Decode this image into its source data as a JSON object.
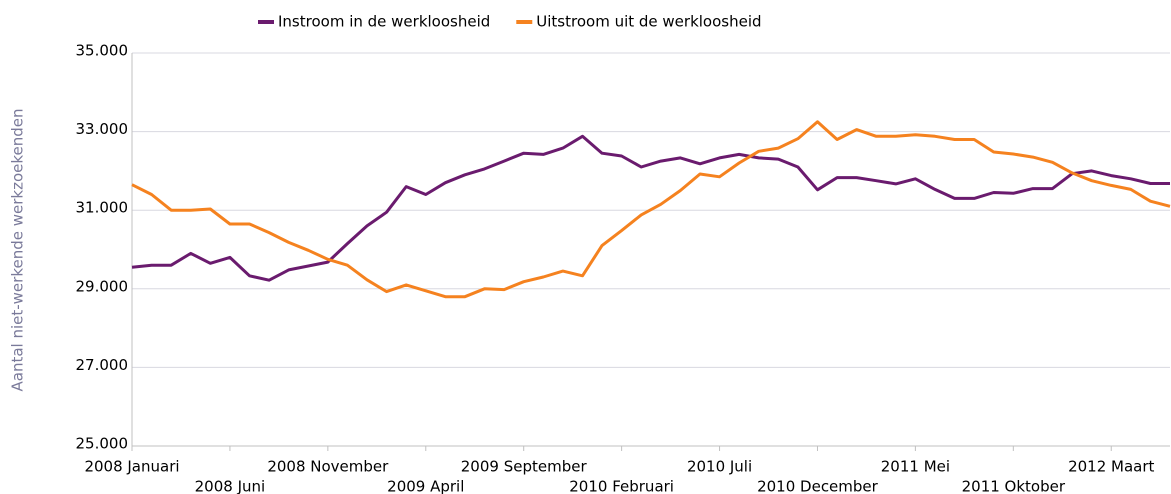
{
  "chart_data": {
    "type": "line",
    "ylabel": "Aantal niet-werkende werkzoekenden",
    "categories": [
      "2008 Januari",
      null,
      null,
      null,
      null,
      "2008 Juni",
      null,
      null,
      null,
      null,
      "2008 November",
      null,
      null,
      null,
      null,
      "2009 April",
      null,
      null,
      null,
      null,
      "2009 September",
      null,
      null,
      null,
      null,
      "2010 Februari",
      null,
      null,
      null,
      null,
      "2010 Juli",
      null,
      null,
      null,
      null,
      "2010 December",
      null,
      null,
      null,
      null,
      "2011 Mei",
      null,
      null,
      null,
      null,
      "2011 Oktober",
      null,
      null,
      null,
      null,
      "2012 Maart",
      null,
      null,
      null
    ],
    "series": [
      {
        "name": "Instroom in de werkloosheid",
        "color": "#6a1b6e",
        "values": [
          29550,
          29600,
          29600,
          29900,
          29650,
          29800,
          29330,
          29220,
          29480,
          29580,
          29680,
          30150,
          30600,
          30950,
          31600,
          31400,
          31700,
          31900,
          32050,
          32250,
          32450,
          32420,
          32580,
          32880,
          32450,
          32380,
          32100,
          32250,
          32330,
          32180,
          32330,
          32420,
          32330,
          32300,
          32100,
          31520,
          31830,
          31830,
          31750,
          31670,
          31800,
          31530,
          31300,
          31300,
          31450,
          31430,
          31550,
          31550,
          31930,
          32000,
          31880,
          31800,
          31680,
          31680
        ]
      },
      {
        "name": "Uitstroom uit de werkloosheid",
        "color": "#f5821f",
        "values": [
          31650,
          31400,
          31000,
          31000,
          31030,
          30650,
          30650,
          30430,
          30180,
          29980,
          29750,
          29600,
          29230,
          28930,
          29100,
          28950,
          28800,
          28800,
          29000,
          28980,
          29180,
          29300,
          29450,
          29330,
          30100,
          30480,
          30880,
          31150,
          31500,
          31920,
          31850,
          32200,
          32500,
          32580,
          32820,
          33250,
          32800,
          33050,
          32880,
          32880,
          32920,
          32880,
          32800,
          32800,
          32480,
          32430,
          32350,
          32220,
          31950,
          31750,
          31630,
          31530,
          31230,
          31100
        ]
      }
    ],
    "ylim": [
      25000,
      35000
    ],
    "yticks": [
      {
        "value": 25000,
        "label": "25.000"
      },
      {
        "value": 27000,
        "label": "27.000"
      },
      {
        "value": 29000,
        "label": "29.000"
      },
      {
        "value": 31000,
        "label": "31.000"
      },
      {
        "value": 33000,
        "label": "33.000"
      },
      {
        "value": 35000,
        "label": "35.000"
      }
    ],
    "grid": true,
    "legend": "top"
  }
}
